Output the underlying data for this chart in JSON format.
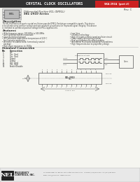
{
  "body_bg": "#f5f5f0",
  "header_bg": "#333333",
  "header_text": "CRYSTAL CLOCK OSCILLATORS",
  "header_text_color": "#ffffff",
  "tag_bg": "#cc2222",
  "tag_text": "SKA 291A  (part #)",
  "tag_text_color": "#ffffff",
  "rev_text": "Rev. C",
  "series_line1": "Differential Positive ECL (DPECL)",
  "series_line2": "SKL-2910 Series",
  "desc_title": "Description",
  "desc_body": "The SK-2910 Series of quartz crystal oscillators provide DPECL Positiotype compatible signals. This device is to operate using positive voltage and uses multiple ground pins for improved signal integrity. This device is intended to operate at positive voltage for PECL applications.",
  "feat_title": "Features",
  "feat_left": [
    "• Wide frequency range: 100.0MHz to 945.0MHz",
    "• User specified tolerance available",
    "• Case at electrical ground",
    "• Will withstand vapor phase temperature of 220°C",
    "   for 4 minutes maximum",
    "• All metal, resistance weld, hermetically sealed",
    "   package",
    "• High shock resistance, to 1500g"
  ],
  "feat_right": [
    "• Low Jitter",
    "• Ceramic technology",
    "• High Q Crystal actively tuned oscillator circuit",
    "• Power supply decoupling internal",
    "• Dual ground plane for added stability",
    "• No internal PLL avoids cascading PLL problems",
    "• High frequencies due to proprietary design"
  ],
  "std_conn_title": "Standard Connection",
  "pin_header1": "Pin",
  "pin_header2": "Connection",
  "pins": [
    [
      "1",
      "Vcc"
    ],
    [
      "2",
      "Vcc  Gnd"
    ],
    [
      "3",
      "Vcc  Gnd"
    ],
    [
      "7",
      "Output"
    ],
    [
      "8",
      "Output"
    ],
    [
      "9",
      "Vcc  Gnd"
    ],
    [
      "10",
      "Vcc  Gnd"
    ],
    [
      "14",
      "Enable/Disable"
    ]
  ],
  "footer_logo": "NEL",
  "footer_company1": "FREQUENCY",
  "footer_company2": "CONTROLS, INC.",
  "footer_addr1": "127 Bauer Road, P.O. Box 607, Burlington, WI 53105-0671   La Verne: (262)763-3591  FAX: (262)763-2881",
  "footer_addr2": "Email: nelly@nelfc.com   www.nelfc.com"
}
